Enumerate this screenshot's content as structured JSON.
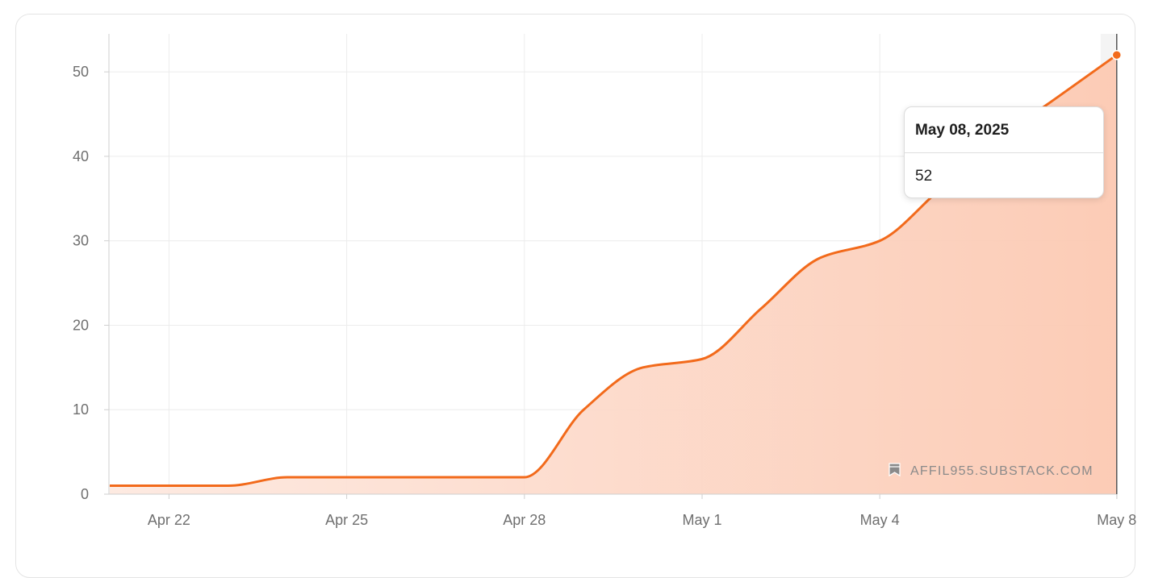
{
  "chart_data": {
    "type": "area",
    "x": [
      "2025-04-21",
      "2025-04-22",
      "2025-04-23",
      "2025-04-24",
      "2025-04-25",
      "2025-04-26",
      "2025-04-27",
      "2025-04-28",
      "2025-04-29",
      "2025-04-30",
      "2025-05-01",
      "2025-05-02",
      "2025-05-03",
      "2025-05-04",
      "2025-05-05",
      "2025-05-06",
      "2025-05-07",
      "2025-05-08"
    ],
    "values": [
      1,
      1,
      1,
      2,
      2,
      2,
      2,
      2,
      10,
      15,
      16,
      22,
      28,
      30,
      36,
      42,
      47,
      52
    ],
    "x_tick_labels": [
      "Apr 22",
      "Apr 25",
      "Apr 28",
      "May 1",
      "May 4",
      "May 8"
    ],
    "y_ticks": [
      0,
      10,
      20,
      30,
      40,
      50
    ],
    "ylim": [
      0,
      54.5
    ],
    "grid": true,
    "title": "",
    "xlabel": "",
    "ylabel": "",
    "line_color": "#f26a1b",
    "fill_color": "#fcd2bf"
  },
  "tooltip": {
    "date": "May 08, 2025",
    "value": "52"
  },
  "watermark": {
    "icon": "bookmark-icon",
    "text": "AFFIL955.SUBSTACK.COM"
  }
}
